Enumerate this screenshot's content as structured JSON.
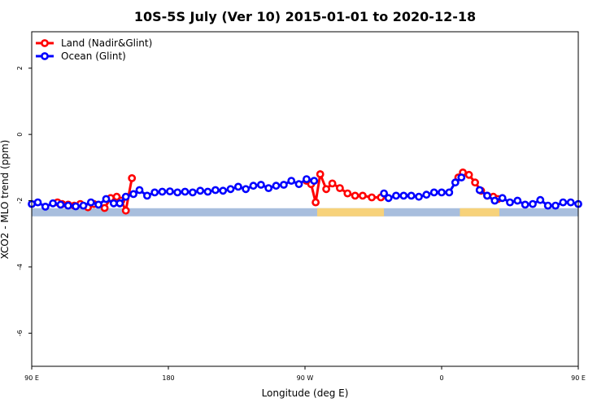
{
  "chart_data": {
    "type": "line",
    "title": "10S-5S July (Ver 10)   2015-01-01 to 2020-12-18",
    "xlabel": "Longitude (deg E)",
    "ylabel": "XCO2 - MLO trend (ppm)",
    "xlim": [
      90,
      450
    ],
    "ylim": [
      -7,
      3.1
    ],
    "x_ticks": [
      {
        "value": 90,
        "label": "90 E"
      },
      {
        "value": 180,
        "label": "180"
      },
      {
        "value": 270,
        "label": "90 W"
      },
      {
        "value": 360,
        "label": "0"
      },
      {
        "value": 450,
        "label": "90 E"
      },
      {
        "value": 540,
        "label": "180"
      }
    ],
    "y_ticks": [
      2,
      0,
      -2,
      -4,
      -6
    ],
    "legend": {
      "position": "top-left",
      "entries": [
        {
          "name": "Land (Nadir&Glint)",
          "color": "#ff0000"
        },
        {
          "name": "Ocean (Glint)",
          "color": "#0000ff"
        }
      ]
    },
    "surface_bar": {
      "y": -2.35,
      "ocean_color": "#a8bedd",
      "land_color": "#f7d27a",
      "land_segments": [
        [
          278,
          322
        ],
        [
          372,
          398
        ]
      ]
    },
    "series": [
      {
        "name": "Land (Nadir&Glint)",
        "color": "#ff0000",
        "segments": [
          {
            "x": [
              107,
              110,
              114,
              118,
              122,
              127,
              131
            ],
            "y": [
              -2.05,
              -2.1,
              -2.12,
              -2.15,
              -2.1,
              -2.2,
              -2.1
            ]
          },
          {
            "x": [
              138,
              142,
              146,
              149,
              152,
              156
            ],
            "y": [
              -2.22,
              -1.92,
              -1.88,
              -2.0,
              -2.3,
              -1.32
            ]
          },
          {
            "x": [
              271,
              274,
              277,
              280,
              284,
              288,
              293,
              298,
              303,
              308,
              314,
              320
            ],
            "y": [
              -1.4,
              -1.5,
              -2.05,
              -1.2,
              -1.65,
              -1.48,
              -1.62,
              -1.78,
              -1.85,
              -1.85,
              -1.9,
              -1.9
            ]
          },
          {
            "x": [
              371,
              374,
              378,
              382,
              386,
              390,
              394,
              397
            ],
            "y": [
              -1.3,
              -1.15,
              -1.22,
              -1.45,
              -1.7,
              -1.85,
              -1.88,
              -1.95
            ]
          },
          {
            "x": [
              495,
              501,
              506,
              511
            ],
            "y": [
              -2.05,
              -2.1,
              -2.12,
              -2.15
            ]
          },
          {
            "x": [
              530,
              533,
              536,
              540,
              543,
              546
            ],
            "y": [
              -2.25,
              -1.92,
              -1.88,
              -2.3,
              -2.05,
              -1.32
            ]
          }
        ]
      },
      {
        "name": "Ocean (Glint)",
        "color": "#0000ff",
        "segments": [
          {
            "x": [
              90,
              94,
              99,
              104,
              109,
              114,
              119,
              124,
              129,
              134,
              139,
              144,
              148,
              152,
              157,
              161,
              166,
              171,
              176,
              181,
              186,
              191,
              196,
              201,
              206,
              211,
              216,
              221,
              226,
              231,
              236,
              241,
              246,
              251,
              256,
              261,
              266,
              271,
              276
            ],
            "y": [
              -2.1,
              -2.05,
              -2.18,
              -2.08,
              -2.12,
              -2.15,
              -2.17,
              -2.15,
              -2.05,
              -2.12,
              -1.95,
              -2.08,
              -2.08,
              -1.88,
              -1.8,
              -1.68,
              -1.85,
              -1.75,
              -1.73,
              -1.72,
              -1.75,
              -1.73,
              -1.75,
              -1.7,
              -1.73,
              -1.68,
              -1.7,
              -1.65,
              -1.58,
              -1.65,
              -1.55,
              -1.52,
              -1.62,
              -1.55,
              -1.52,
              -1.4,
              -1.5,
              -1.35,
              -1.4
            ]
          },
          {
            "x": [
              322,
              325,
              330,
              335,
              340,
              345,
              350,
              355,
              360,
              365,
              369,
              373
            ],
            "y": [
              -1.78,
              -1.92,
              -1.85,
              -1.85,
              -1.85,
              -1.88,
              -1.82,
              -1.75,
              -1.75,
              -1.75,
              -1.45,
              -1.3
            ]
          },
          {
            "x": [
              385,
              390,
              395,
              400,
              405,
              410,
              415,
              420,
              425,
              430,
              435,
              440,
              445,
              450,
              455,
              460,
              465,
              470,
              475,
              480,
              485,
              490,
              495,
              500,
              505,
              510,
              515,
              520,
              525,
              530,
              535,
              540,
              545,
              550,
              555,
              560,
              565
            ],
            "y": [
              -1.68,
              -1.85,
              -2.0,
              -1.92,
              -2.05,
              -2.0,
              -2.12,
              -2.1,
              -1.98,
              -2.15,
              -2.15,
              -2.05,
              -2.05,
              -2.1,
              -2.05,
              -2.2,
              -2.08,
              -2.12,
              -2.15,
              -2.12,
              -2.15,
              -2.05,
              -2.08,
              -2.05,
              -2.05,
              -1.95,
              -2.12,
              -2.0,
              -2.05,
              -2.1,
              -2.05,
              -2.15,
              -1.88,
              -1.8,
              -1.7,
              -1.85,
              -1.75
            ]
          }
        ]
      }
    ]
  }
}
